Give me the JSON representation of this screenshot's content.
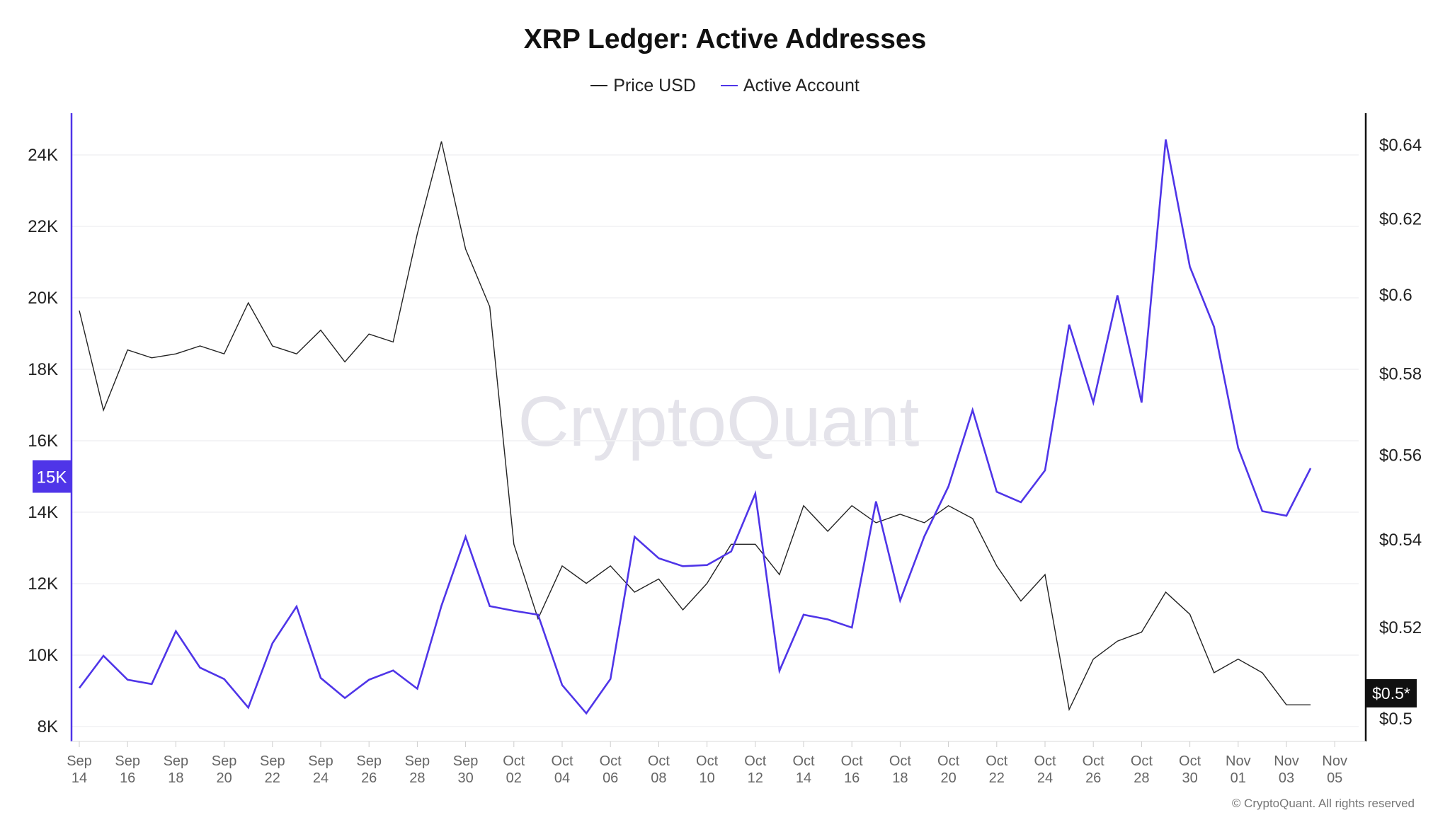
{
  "chart_data": {
    "type": "line",
    "title": "XRP Ledger: Active Addresses",
    "legend_position": "top-center",
    "grid": true,
    "x": [
      "Sep 14",
      "Sep 15",
      "Sep 16",
      "Sep 17",
      "Sep 18",
      "Sep 19",
      "Sep 20",
      "Sep 21",
      "Sep 22",
      "Sep 23",
      "Sep 24",
      "Sep 25",
      "Sep 26",
      "Sep 27",
      "Sep 28",
      "Sep 29",
      "Sep 30",
      "Oct 01",
      "Oct 02",
      "Oct 03",
      "Oct 04",
      "Oct 05",
      "Oct 06",
      "Oct 07",
      "Oct 08",
      "Oct 09",
      "Oct 10",
      "Oct 11",
      "Oct 12",
      "Oct 13",
      "Oct 14",
      "Oct 15",
      "Oct 16",
      "Oct 17",
      "Oct 18",
      "Oct 19",
      "Oct 20",
      "Oct 21",
      "Oct 22",
      "Oct 23",
      "Oct 24",
      "Oct 25",
      "Oct 26",
      "Oct 27",
      "Oct 28",
      "Oct 29",
      "Oct 30",
      "Oct 31",
      "Nov 01",
      "Nov 02",
      "Nov 03",
      "Nov 04"
    ],
    "x_tick_labels": [
      [
        "Sep",
        "14"
      ],
      [
        "Sep",
        "16"
      ],
      [
        "Sep",
        "18"
      ],
      [
        "Sep",
        "20"
      ],
      [
        "Sep",
        "22"
      ],
      [
        "Sep",
        "24"
      ],
      [
        "Sep",
        "26"
      ],
      [
        "Sep",
        "28"
      ],
      [
        "Sep",
        "30"
      ],
      [
        "Oct",
        "02"
      ],
      [
        "Oct",
        "04"
      ],
      [
        "Oct",
        "06"
      ],
      [
        "Oct",
        "08"
      ],
      [
        "Oct",
        "10"
      ],
      [
        "Oct",
        "12"
      ],
      [
        "Oct",
        "14"
      ],
      [
        "Oct",
        "16"
      ],
      [
        "Oct",
        "18"
      ],
      [
        "Oct",
        "20"
      ],
      [
        "Oct",
        "22"
      ],
      [
        "Oct",
        "24"
      ],
      [
        "Oct",
        "26"
      ],
      [
        "Oct",
        "28"
      ],
      [
        "Oct",
        "30"
      ],
      [
        "Nov",
        "01"
      ],
      [
        "Nov",
        "03"
      ],
      [
        "Nov",
        "05"
      ]
    ],
    "y_left": {
      "range": [
        8000,
        24000
      ],
      "scale": "linear",
      "ticks": [
        "24K",
        "22K",
        "20K",
        "18K",
        "16K",
        "14K",
        "12K",
        "10K",
        "8K"
      ],
      "tick_values": [
        24000,
        22000,
        20000,
        18000,
        16000,
        14000,
        12000,
        10000,
        8000
      ],
      "color": "#4f35e8"
    },
    "y_right": {
      "range": [
        0.5,
        0.64
      ],
      "scale": "log",
      "ticks": [
        "$0.64",
        "$0.62",
        "$0.6",
        "$0.58",
        "$0.56",
        "$0.54",
        "$0.52",
        "$0.5"
      ],
      "tick_values": [
        0.64,
        0.62,
        0.6,
        0.58,
        0.56,
        0.54,
        0.52,
        0.5
      ],
      "color": "#111111"
    },
    "series": [
      {
        "name": "Price USD",
        "axis": "right",
        "color": "#222222",
        "values": [
          0.596,
          0.571,
          0.586,
          0.584,
          0.585,
          0.587,
          0.585,
          0.598,
          0.587,
          0.585,
          0.591,
          0.583,
          0.59,
          0.588,
          0.616,
          0.641,
          0.612,
          0.597,
          0.539,
          0.522,
          0.534,
          0.53,
          0.534,
          0.528,
          0.531,
          0.524,
          0.53,
          0.539,
          0.539,
          0.532,
          0.548,
          0.542,
          0.548,
          0.544,
          0.546,
          0.544,
          0.548,
          0.545,
          0.534,
          0.526,
          0.532,
          0.502,
          0.513,
          0.517,
          0.519,
          0.528,
          0.523,
          0.51,
          0.513,
          0.51,
          0.503,
          0.503
        ]
      },
      {
        "name": "Active Account",
        "axis": "left",
        "color": "#4f35e8",
        "values": [
          9080,
          9980,
          9310,
          9190,
          10670,
          9650,
          9330,
          8530,
          10330,
          11360,
          9360,
          8800,
          9310,
          9570,
          9060,
          11380,
          13310,
          11370,
          11240,
          11130,
          9160,
          8370,
          9330,
          13310,
          12710,
          12490,
          12520,
          12900,
          14520,
          9560,
          11130,
          11000,
          10770,
          14300,
          11530,
          13320,
          14720,
          16860,
          14570,
          14280,
          15170,
          19250,
          17070,
          20070,
          17070,
          24430,
          20870,
          19190,
          15800,
          14030,
          13900,
          15230
        ]
      }
    ],
    "current_left_badge": "15K",
    "current_right_badge": "$0.5*",
    "watermark": "CryptoQuant",
    "copyright": "© CryptoQuant. All rights reserved"
  }
}
